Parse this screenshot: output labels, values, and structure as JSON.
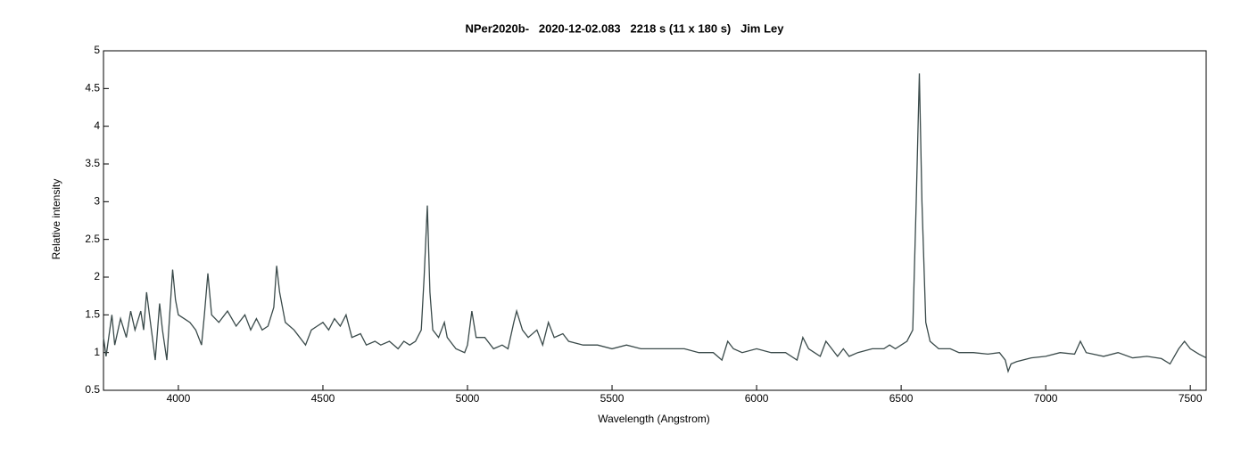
{
  "chart_data": {
    "type": "line",
    "title": "NPer2020b-   2020-12-02.083   2218 s (11 x 180 s)   Jim Ley",
    "x_label": "Wavelength (Angstrom)",
    "y_label": "Relative intensity",
    "x": [
      3741,
      3750,
      3770,
      3780,
      3800,
      3820,
      3835,
      3850,
      3870,
      3880,
      3890,
      3900,
      3910,
      3920,
      3935,
      3945,
      3960,
      3970,
      3980,
      3990,
      4000,
      4020,
      4040,
      4060,
      4080,
      4090,
      4102,
      4115,
      4140,
      4170,
      4200,
      4230,
      4250,
      4270,
      4290,
      4310,
      4330,
      4340,
      4350,
      4370,
      4400,
      4420,
      4440,
      4460,
      4480,
      4500,
      4520,
      4540,
      4560,
      4580,
      4600,
      4630,
      4650,
      4680,
      4700,
      4730,
      4760,
      4780,
      4800,
      4820,
      4840,
      4850,
      4861,
      4870,
      4880,
      4900,
      4920,
      4930,
      4960,
      4990,
      5000,
      5015,
      5030,
      5060,
      5090,
      5120,
      5140,
      5160,
      5170,
      5190,
      5210,
      5240,
      5260,
      5280,
      5300,
      5330,
      5350,
      5400,
      5450,
      5500,
      5550,
      5600,
      5650,
      5700,
      5750,
      5800,
      5850,
      5880,
      5900,
      5920,
      5950,
      6000,
      6050,
      6100,
      6140,
      6160,
      6180,
      6200,
      6220,
      6240,
      6260,
      6280,
      6300,
      6320,
      6350,
      6400,
      6440,
      6460,
      6480,
      6500,
      6520,
      6540,
      6552,
      6563,
      6572,
      6585,
      6600,
      6630,
      6670,
      6700,
      6750,
      6800,
      6840,
      6860,
      6870,
      6880,
      6900,
      6950,
      7000,
      7050,
      7100,
      7120,
      7140,
      7200,
      7250,
      7300,
      7350,
      7400,
      7430,
      7460,
      7480,
      7500,
      7530,
      7555
    ],
    "series": [
      {
        "color": "#3a4a4a",
        "values": [
          1.2,
          0.95,
          1.5,
          1.1,
          1.45,
          1.2,
          1.55,
          1.3,
          1.55,
          1.3,
          1.8,
          1.5,
          1.2,
          0.9,
          1.65,
          1.3,
          0.9,
          1.5,
          2.1,
          1.7,
          1.5,
          1.45,
          1.4,
          1.3,
          1.1,
          1.5,
          2.05,
          1.5,
          1.4,
          1.55,
          1.35,
          1.5,
          1.3,
          1.45,
          1.3,
          1.35,
          1.6,
          2.15,
          1.8,
          1.4,
          1.3,
          1.2,
          1.1,
          1.3,
          1.35,
          1.4,
          1.3,
          1.45,
          1.35,
          1.5,
          1.2,
          1.25,
          1.1,
          1.15,
          1.1,
          1.15,
          1.05,
          1.15,
          1.1,
          1.15,
          1.3,
          2.0,
          2.95,
          1.8,
          1.3,
          1.2,
          1.4,
          1.2,
          1.05,
          1.0,
          1.1,
          1.55,
          1.2,
          1.2,
          1.05,
          1.1,
          1.05,
          1.4,
          1.55,
          1.3,
          1.2,
          1.3,
          1.1,
          1.4,
          1.2,
          1.25,
          1.15,
          1.1,
          1.1,
          1.05,
          1.1,
          1.05,
          1.05,
          1.05,
          1.05,
          1.0,
          1.0,
          0.9,
          1.15,
          1.05,
          1.0,
          1.05,
          1.0,
          1.0,
          0.9,
          1.2,
          1.05,
          1.0,
          0.95,
          1.15,
          1.05,
          0.95,
          1.05,
          0.95,
          1.0,
          1.05,
          1.05,
          1.1,
          1.05,
          1.1,
          1.15,
          1.3,
          3.0,
          4.7,
          3.0,
          1.4,
          1.15,
          1.05,
          1.05,
          1.0,
          1.0,
          0.98,
          1.0,
          0.9,
          0.75,
          0.85,
          0.88,
          0.93,
          0.95,
          1.0,
          0.98,
          1.15,
          1.0,
          0.95,
          1.0,
          0.93,
          0.95,
          0.92,
          0.85,
          1.05,
          1.15,
          1.05,
          0.98,
          0.93
        ]
      }
    ],
    "xlim": [
      3741,
      7555
    ],
    "ylim": [
      0.5,
      5
    ],
    "xticks": [
      4000,
      4500,
      5000,
      5500,
      6000,
      6500,
      7000,
      7500
    ],
    "yticks": [
      0.5,
      1,
      1.5,
      2,
      2.5,
      3,
      3.5,
      4,
      4.5,
      5
    ]
  }
}
